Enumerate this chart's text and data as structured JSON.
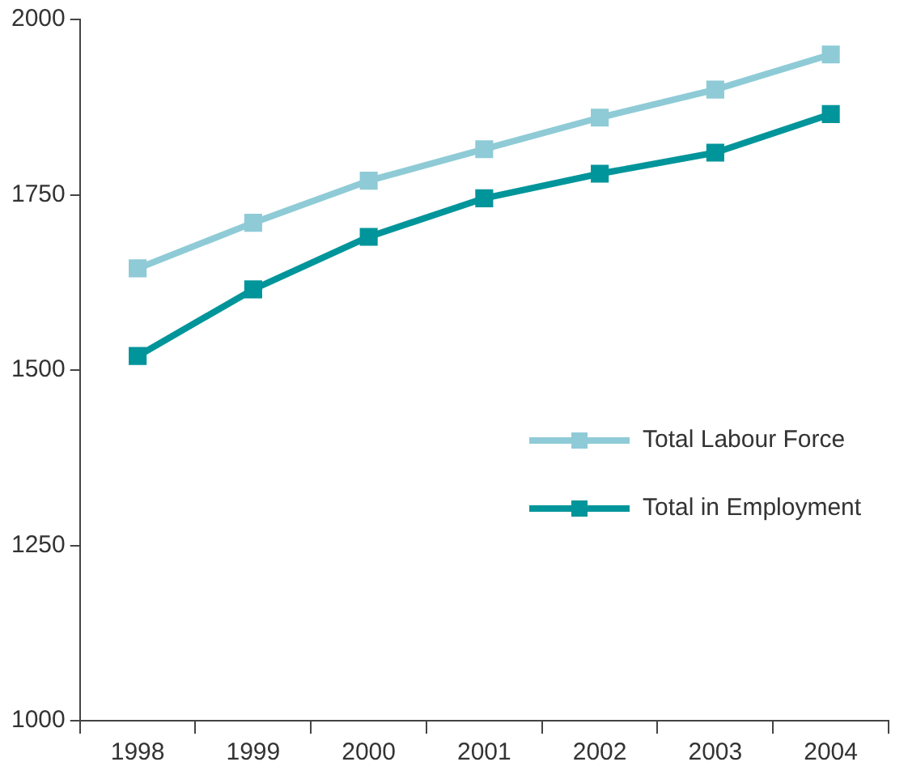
{
  "chart_data": {
    "type": "line",
    "categories": [
      "1998",
      "1999",
      "2000",
      "2001",
      "2002",
      "2003",
      "2004"
    ],
    "series": [
      {
        "name": "Total Labour Force",
        "color": "#8ecbd6",
        "values": [
          1645,
          1710,
          1770,
          1815,
          1860,
          1900,
          1950
        ]
      },
      {
        "name": "Total in Employment",
        "color": "#00959a",
        "values": [
          1520,
          1615,
          1690,
          1745,
          1780,
          1810,
          1865
        ]
      }
    ],
    "ylim": [
      1000,
      2000
    ],
    "yticks": [
      1000,
      1250,
      1500,
      1750,
      2000
    ],
    "grid": false,
    "legend": "right",
    "marker": "square",
    "line_style": "solid"
  }
}
